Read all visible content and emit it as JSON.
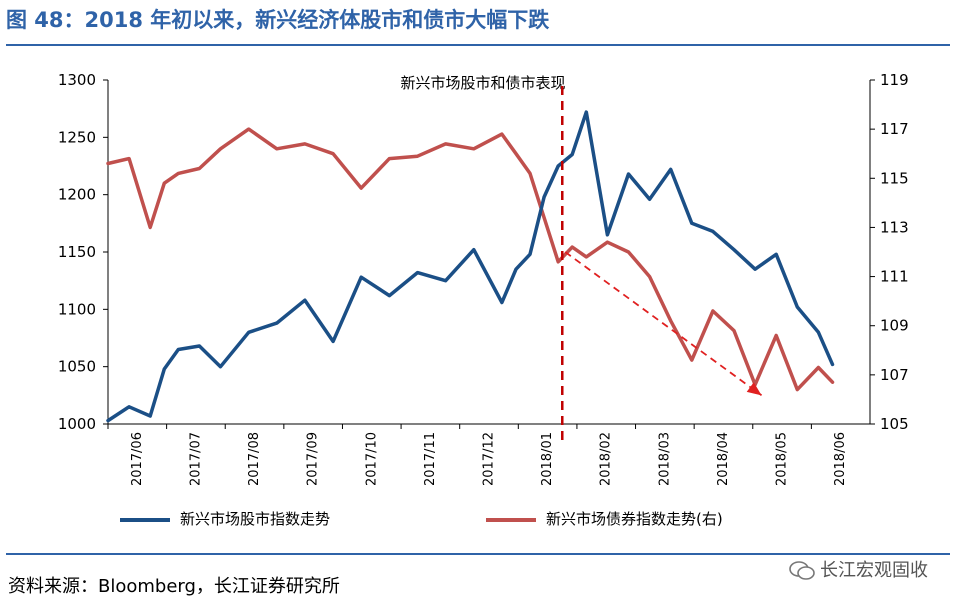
{
  "figure": {
    "title": "图 48：2018 年初以来，新兴经济体股市和债市大幅下跌",
    "source": "资料来源：Bloomberg，长江证券研究所",
    "brand": "长江宏观固收"
  },
  "chart_data": {
    "type": "line",
    "title": "新兴市场股市和债市表现",
    "x_ticks": [
      "2017/06",
      "2017/07",
      "2017/08",
      "2017/09",
      "2017/10",
      "2017/11",
      "2017/12",
      "2018/01",
      "2018/02",
      "2018/03",
      "2018/04",
      "2018/05",
      "2018/06"
    ],
    "y_left": {
      "range": [
        1000,
        1300
      ],
      "ticks": [
        1000,
        1050,
        1100,
        1150,
        1200,
        1250,
        1300
      ]
    },
    "y_right": {
      "range": [
        105,
        119
      ],
      "ticks": [
        105,
        107,
        109,
        111,
        113,
        115,
        117,
        119
      ]
    },
    "colors": {
      "stock": "#1b4f86",
      "bond": "#c0504d",
      "annotation": "#e02020",
      "marker": "#c00000"
    },
    "series": [
      {
        "name": "新兴市场股市指数走势",
        "axis": "left",
        "x": [
          2017.42,
          2017.45,
          2017.48,
          2017.5,
          2017.52,
          2017.55,
          2017.58,
          2017.62,
          2017.66,
          2017.7,
          2017.74,
          2017.78,
          2017.82,
          2017.86,
          2017.9,
          2017.94,
          2017.98,
          2018.0,
          2018.02,
          2018.04,
          2018.06,
          2018.08,
          2018.1,
          2018.13,
          2018.16,
          2018.19,
          2018.22,
          2018.25,
          2018.28,
          2018.31,
          2018.34,
          2018.37,
          2018.4,
          2018.43,
          2018.45
        ],
        "values": [
          1003,
          1015,
          1007,
          1048,
          1065,
          1068,
          1050,
          1080,
          1088,
          1108,
          1072,
          1128,
          1112,
          1132,
          1125,
          1152,
          1106,
          1135,
          1148,
          1198,
          1225,
          1235,
          1272,
          1165,
          1218,
          1196,
          1222,
          1175,
          1168,
          1152,
          1135,
          1148,
          1102,
          1080,
          1052
        ]
      },
      {
        "name": "新兴市场债券指数走势(右)",
        "axis": "right",
        "x": [
          2017.42,
          2017.45,
          2017.48,
          2017.5,
          2017.52,
          2017.55,
          2017.58,
          2017.62,
          2017.66,
          2017.7,
          2017.74,
          2017.78,
          2017.82,
          2017.86,
          2017.9,
          2017.94,
          2017.98,
          2018.0,
          2018.02,
          2018.04,
          2018.06,
          2018.08,
          2018.1,
          2018.13,
          2018.16,
          2018.19,
          2018.22,
          2018.25,
          2018.28,
          2018.31,
          2018.34,
          2018.37,
          2018.4,
          2018.43,
          2018.45
        ],
        "values": [
          115.6,
          115.8,
          113.0,
          114.8,
          115.2,
          115.4,
          116.2,
          117.0,
          116.2,
          116.4,
          116.0,
          114.6,
          115.8,
          115.9,
          116.4,
          116.2,
          116.8,
          116.0,
          115.2,
          113.4,
          111.6,
          112.2,
          111.8,
          112.4,
          112.0,
          111.0,
          109.2,
          107.6,
          109.6,
          108.8,
          106.6,
          108.6,
          106.4,
          107.3,
          106.7
        ]
      }
    ],
    "annotation": {
      "type": "arrow",
      "style": "dashed",
      "from": [
        "2018/01",
        1150
      ],
      "to": [
        "2018/05",
        1025
      ]
    },
    "event_line": {
      "x": "2018/01",
      "style": "dashed"
    }
  }
}
